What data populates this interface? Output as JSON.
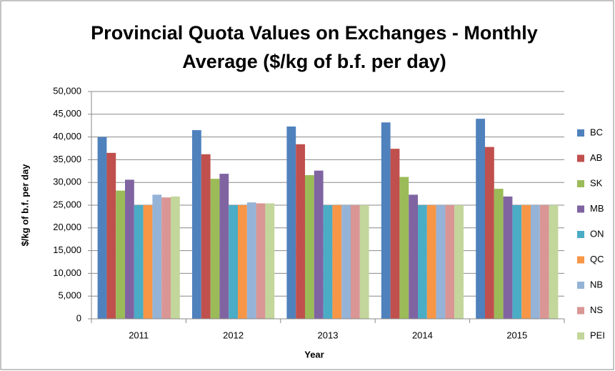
{
  "chart_data": {
    "type": "bar",
    "title": [
      "Provincial Quota Values on Exchanges - Monthly",
      "Average ($/kg of b.f. per day)"
    ],
    "x_label": "Year",
    "y_label": "$/kg of b.f. per day",
    "categories": [
      "2011",
      "2012",
      "2013",
      "2014",
      "2015"
    ],
    "series": [
      {
        "name": "BC",
        "color": "#4F81BD",
        "values": [
          40000,
          41500,
          42300,
          43200,
          44000
        ]
      },
      {
        "name": "AB",
        "color": "#C0504D",
        "values": [
          36500,
          36200,
          38400,
          37400,
          37800
        ]
      },
      {
        "name": "SK",
        "color": "#9BBB59",
        "values": [
          28200,
          30800,
          31600,
          31200,
          28600
        ]
      },
      {
        "name": "MB",
        "color": "#8064A2",
        "values": [
          30600,
          31900,
          32600,
          27300,
          26900
        ]
      },
      {
        "name": "ON",
        "color": "#4BACC6",
        "values": [
          25000,
          25000,
          25000,
          25000,
          25000
        ]
      },
      {
        "name": "QC",
        "color": "#F79646",
        "values": [
          25000,
          25000,
          25000,
          25000,
          25000
        ]
      },
      {
        "name": "NB",
        "color": "#95B3D7",
        "values": [
          27300,
          25600,
          25000,
          25000,
          25000
        ]
      },
      {
        "name": "NS",
        "color": "#D99694",
        "values": [
          26700,
          25400,
          25000,
          25000,
          25000
        ]
      },
      {
        "name": "PEI",
        "color": "#C3D69B",
        "values": [
          26900,
          25400,
          25000,
          25000,
          25000
        ]
      }
    ],
    "ylim": [
      0,
      50000
    ],
    "yticks": [
      0,
      {
        "value": 5000,
        "label": "5,000"
      },
      {
        "value": 10000,
        "label": "10,000"
      },
      {
        "value": 15000,
        "label": "15,000"
      },
      {
        "value": 20000,
        "label": "20,000"
      },
      {
        "value": 25000,
        "label": "25,000"
      },
      {
        "value": 30000,
        "label": "30,000"
      },
      {
        "value": 35000,
        "label": "35,000"
      },
      {
        "value": 40000,
        "label": "40,000"
      },
      {
        "value": 45000,
        "label": "45,000"
      },
      {
        "value": 50000,
        "label": "50,000"
      }
    ],
    "grid": true,
    "legend": "right"
  }
}
